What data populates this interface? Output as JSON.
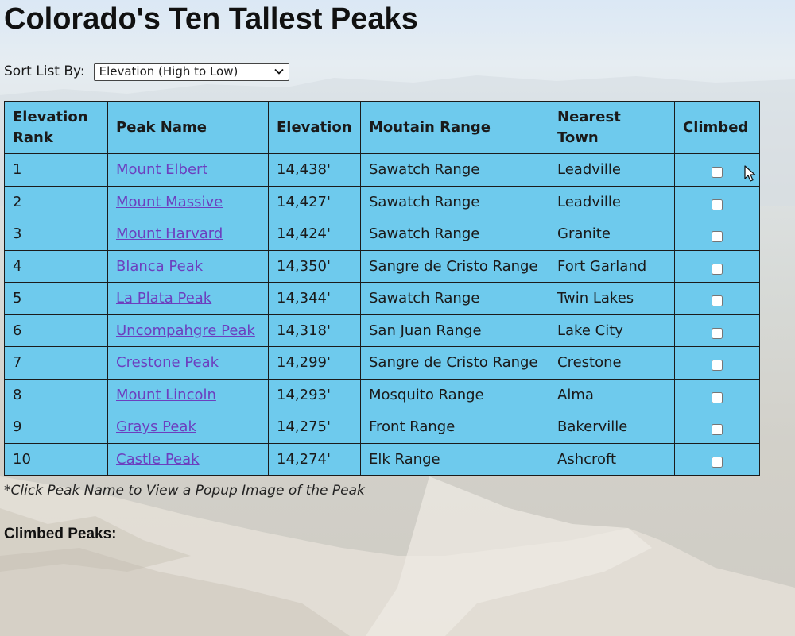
{
  "page": {
    "title": "Colorado's Ten Tallest Peaks"
  },
  "sort": {
    "label": "Sort List By:",
    "selected": "Elevation (High to Low)"
  },
  "table": {
    "headers": [
      "Elevation Rank",
      "Peak Name",
      "Elevation",
      "Moutain Range",
      "Nearest Town",
      "Climbed"
    ],
    "rows": [
      {
        "rank": "1",
        "name": "Mount Elbert",
        "elevation": "14,438'",
        "range": "Sawatch Range",
        "town": "Leadville",
        "climbed": false
      },
      {
        "rank": "2",
        "name": "Mount Massive",
        "elevation": "14,427'",
        "range": "Sawatch Range",
        "town": "Leadville",
        "climbed": false
      },
      {
        "rank": "3",
        "name": "Mount Harvard",
        "elevation": "14,424'",
        "range": "Sawatch Range",
        "town": "Granite",
        "climbed": false
      },
      {
        "rank": "4",
        "name": "Blanca Peak",
        "elevation": "14,350'",
        "range": "Sangre de Cristo Range",
        "town": "Fort Garland",
        "climbed": false
      },
      {
        "rank": "5",
        "name": "La Plata Peak",
        "elevation": "14,344'",
        "range": "Sawatch Range",
        "town": "Twin Lakes",
        "climbed": false
      },
      {
        "rank": "6",
        "name": "Uncompahgre Peak",
        "elevation": "14,318'",
        "range": "San Juan Range",
        "town": "Lake City",
        "climbed": false
      },
      {
        "rank": "7",
        "name": "Crestone Peak",
        "elevation": "14,299'",
        "range": "Sangre de Cristo Range",
        "town": "Crestone",
        "climbed": false
      },
      {
        "rank": "8",
        "name": "Mount Lincoln",
        "elevation": "14,293'",
        "range": "Mosquito Range",
        "town": "Alma",
        "climbed": false
      },
      {
        "rank": "9",
        "name": "Grays Peak",
        "elevation": "14,275'",
        "range": "Front Range",
        "town": "Bakerville",
        "climbed": false
      },
      {
        "rank": "10",
        "name": "Castle Peak",
        "elevation": "14,274'",
        "range": "Elk Range",
        "town": "Ashcroft",
        "climbed": false
      }
    ]
  },
  "note": "*Click Peak Name to View a Popup Image of the Peak",
  "climbed_section": {
    "heading": "Climbed Peaks:"
  },
  "colors": {
    "table_bg": "#6ecaed",
    "link": "#6c3fbf"
  },
  "icons": {
    "select_arrow": "chevron-down-icon",
    "cursor": "mouse-pointer-icon"
  }
}
